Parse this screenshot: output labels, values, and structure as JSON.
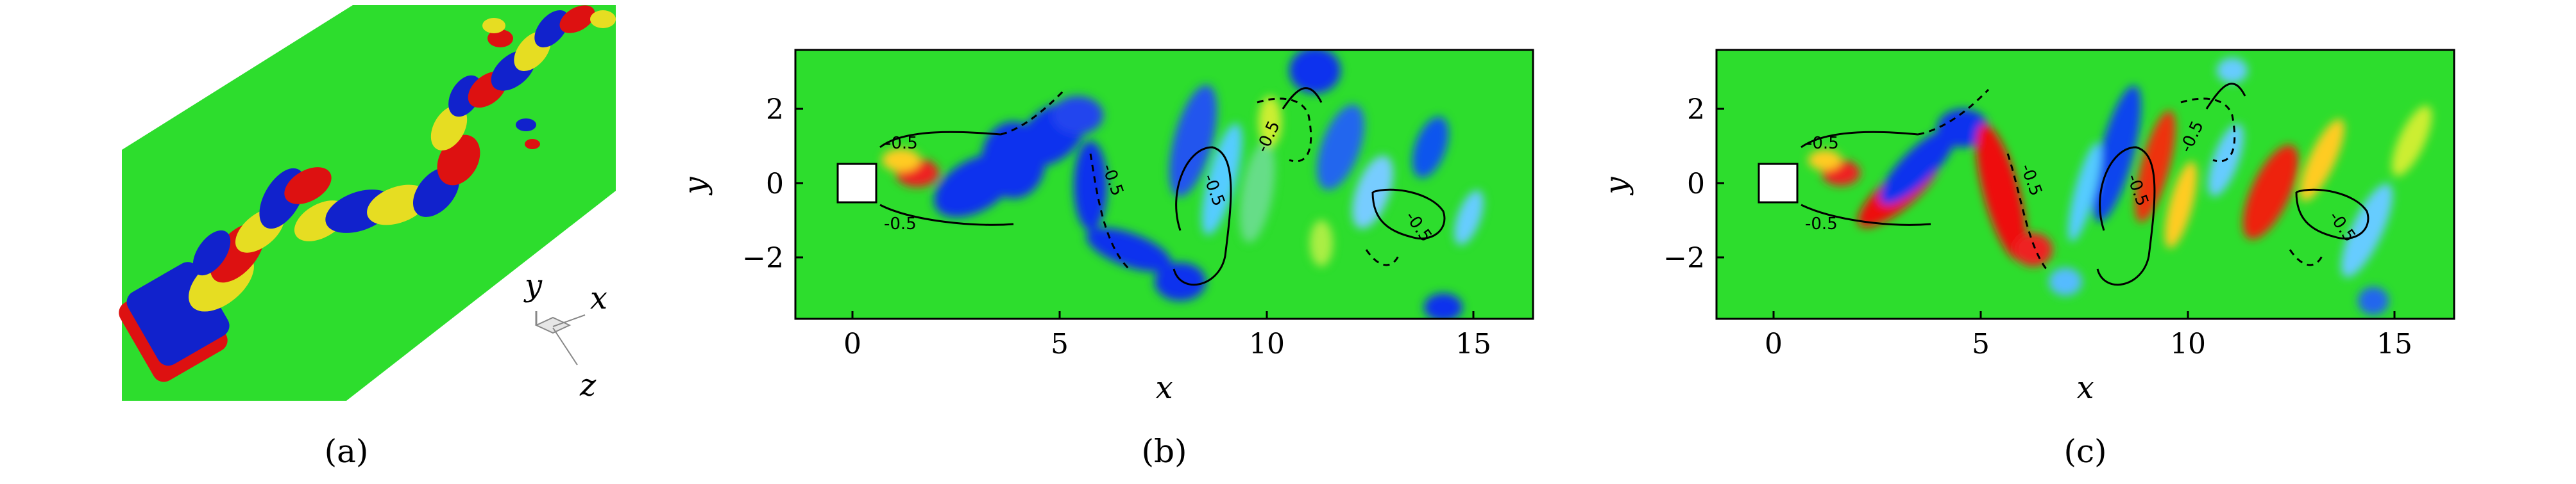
{
  "panels": [
    {
      "id": "a",
      "caption": "(a)",
      "axis_triad": {
        "y": "y",
        "x": "x",
        "z": "z"
      },
      "colors": {
        "background": "#22dd22",
        "positive": "#ee1111",
        "negative": "#1122ee",
        "neutral": "#dddd22"
      }
    },
    {
      "id": "b",
      "caption": "(b)",
      "xlabel": "x",
      "ylabel": "y",
      "xticks": [
        "0",
        "5",
        "10",
        "15"
      ],
      "yticks": [
        "2",
        "0",
        "−2"
      ],
      "contour_labels": [
        "-0.5",
        "-0.5",
        "-0.5",
        "-0.5",
        "-0.5",
        "-0.5"
      ]
    },
    {
      "id": "c",
      "caption": "(c)",
      "xlabel": "x",
      "ylabel": "y",
      "xticks": [
        "0",
        "5",
        "10",
        "15"
      ],
      "yticks": [
        "2",
        "0",
        "−2"
      ],
      "contour_labels": [
        "-0.5",
        "-0.5",
        "-0.5",
        "-0.5",
        "-0.5",
        "-0.5"
      ]
    }
  ]
}
